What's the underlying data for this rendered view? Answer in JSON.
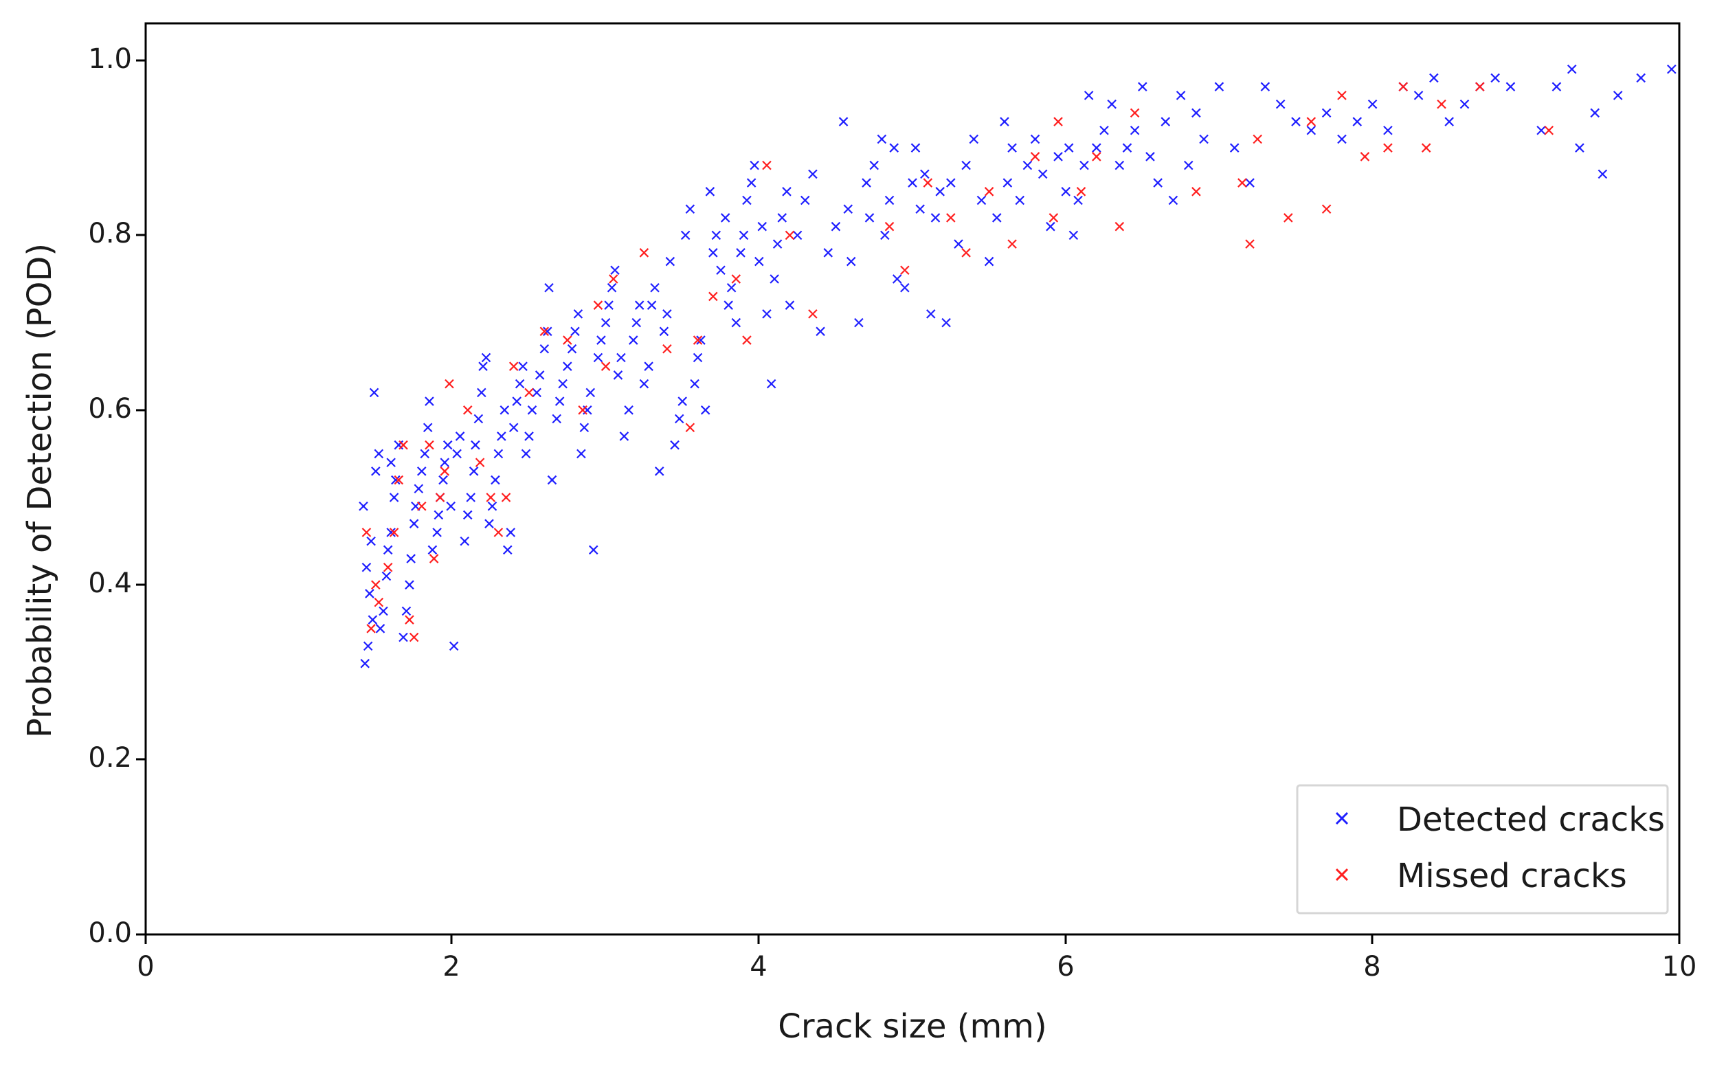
{
  "chart_data": {
    "type": "scatter",
    "title": "",
    "xlabel": "Crack size (mm)",
    "ylabel": "Probability of Detection (POD)",
    "xlim": [
      0,
      10
    ],
    "ylim": [
      0,
      1.0
    ],
    "x_ticks": [
      0,
      2,
      4,
      6,
      8,
      10
    ],
    "y_ticks": [
      0.0,
      0.2,
      0.4,
      0.6,
      0.8,
      1.0
    ],
    "x_tick_labels": [
      "0",
      "2",
      "4",
      "6",
      "8",
      "10"
    ],
    "y_tick_labels": [
      "0.0",
      "0.2",
      "0.4",
      "0.6",
      "0.8",
      "1.0"
    ],
    "grid": false,
    "legend_position": "bottom-right",
    "marker": "x",
    "series": [
      {
        "name": "Detected cracks",
        "color": "#1f1fff",
        "points": [
          [
            1.43,
            0.31
          ],
          [
            1.45,
            0.33
          ],
          [
            1.48,
            0.36
          ],
          [
            1.46,
            0.39
          ],
          [
            1.44,
            0.42
          ],
          [
            1.47,
            0.45
          ],
          [
            1.42,
            0.49
          ],
          [
            1.5,
            0.53
          ],
          [
            1.52,
            0.55
          ],
          [
            1.49,
            0.62
          ],
          [
            1.53,
            0.35
          ],
          [
            1.55,
            0.37
          ],
          [
            1.57,
            0.41
          ],
          [
            1.58,
            0.44
          ],
          [
            1.6,
            0.46
          ],
          [
            1.62,
            0.5
          ],
          [
            1.63,
            0.52
          ],
          [
            1.6,
            0.54
          ],
          [
            1.65,
            0.56
          ],
          [
            1.68,
            0.34
          ],
          [
            1.7,
            0.37
          ],
          [
            1.72,
            0.4
          ],
          [
            1.73,
            0.43
          ],
          [
            1.75,
            0.47
          ],
          [
            1.76,
            0.49
          ],
          [
            1.78,
            0.51
          ],
          [
            1.8,
            0.53
          ],
          [
            1.82,
            0.55
          ],
          [
            1.84,
            0.58
          ],
          [
            1.85,
            0.61
          ],
          [
            1.87,
            0.44
          ],
          [
            1.9,
            0.46
          ],
          [
            1.91,
            0.48
          ],
          [
            1.92,
            0.5
          ],
          [
            1.94,
            0.52
          ],
          [
            1.95,
            0.54
          ],
          [
            1.97,
            0.56
          ],
          [
            1.99,
            0.49
          ],
          [
            2.01,
            0.33
          ],
          [
            2.03,
            0.55
          ],
          [
            2.05,
            0.57
          ],
          [
            2.08,
            0.45
          ],
          [
            2.1,
            0.48
          ],
          [
            2.12,
            0.5
          ],
          [
            2.14,
            0.53
          ],
          [
            2.15,
            0.56
          ],
          [
            2.17,
            0.59
          ],
          [
            2.19,
            0.62
          ],
          [
            2.2,
            0.65
          ],
          [
            2.22,
            0.66
          ],
          [
            2.24,
            0.47
          ],
          [
            2.26,
            0.49
          ],
          [
            2.28,
            0.52
          ],
          [
            2.3,
            0.55
          ],
          [
            2.32,
            0.57
          ],
          [
            2.34,
            0.6
          ],
          [
            2.36,
            0.44
          ],
          [
            2.38,
            0.46
          ],
          [
            2.4,
            0.58
          ],
          [
            2.42,
            0.61
          ],
          [
            2.44,
            0.63
          ],
          [
            2.46,
            0.65
          ],
          [
            2.48,
            0.55
          ],
          [
            2.5,
            0.57
          ],
          [
            2.52,
            0.6
          ],
          [
            2.55,
            0.62
          ],
          [
            2.57,
            0.64
          ],
          [
            2.6,
            0.67
          ],
          [
            2.62,
            0.69
          ],
          [
            2.63,
            0.74
          ],
          [
            2.65,
            0.52
          ],
          [
            2.68,
            0.59
          ],
          [
            2.7,
            0.61
          ],
          [
            2.72,
            0.63
          ],
          [
            2.75,
            0.65
          ],
          [
            2.78,
            0.67
          ],
          [
            2.8,
            0.69
          ],
          [
            2.82,
            0.71
          ],
          [
            2.84,
            0.55
          ],
          [
            2.86,
            0.58
          ],
          [
            2.88,
            0.6
          ],
          [
            2.9,
            0.62
          ],
          [
            2.92,
            0.44
          ],
          [
            2.95,
            0.66
          ],
          [
            2.97,
            0.68
          ],
          [
            3.0,
            0.7
          ],
          [
            3.02,
            0.72
          ],
          [
            3.04,
            0.74
          ],
          [
            3.06,
            0.76
          ],
          [
            3.08,
            0.64
          ],
          [
            3.1,
            0.66
          ],
          [
            3.12,
            0.57
          ],
          [
            3.15,
            0.6
          ],
          [
            3.18,
            0.68
          ],
          [
            3.2,
            0.7
          ],
          [
            3.22,
            0.72
          ],
          [
            3.25,
            0.63
          ],
          [
            3.28,
            0.65
          ],
          [
            3.3,
            0.72
          ],
          [
            3.32,
            0.74
          ],
          [
            3.35,
            0.53
          ],
          [
            3.38,
            0.69
          ],
          [
            3.4,
            0.71
          ],
          [
            3.42,
            0.77
          ],
          [
            3.45,
            0.56
          ],
          [
            3.48,
            0.59
          ],
          [
            3.5,
            0.61
          ],
          [
            3.52,
            0.8
          ],
          [
            3.55,
            0.83
          ],
          [
            3.58,
            0.63
          ],
          [
            3.6,
            0.66
          ],
          [
            3.62,
            0.68
          ],
          [
            3.65,
            0.6
          ],
          [
            3.68,
            0.85
          ],
          [
            3.7,
            0.78
          ],
          [
            3.72,
            0.8
          ],
          [
            3.75,
            0.76
          ],
          [
            3.78,
            0.82
          ],
          [
            3.8,
            0.72
          ],
          [
            3.82,
            0.74
          ],
          [
            3.85,
            0.7
          ],
          [
            3.88,
            0.78
          ],
          [
            3.9,
            0.8
          ],
          [
            3.92,
            0.84
          ],
          [
            3.95,
            0.86
          ],
          [
            3.97,
            0.88
          ],
          [
            4.0,
            0.77
          ],
          [
            4.02,
            0.81
          ],
          [
            4.05,
            0.71
          ],
          [
            4.08,
            0.63
          ],
          [
            4.1,
            0.75
          ],
          [
            4.12,
            0.79
          ],
          [
            4.15,
            0.82
          ],
          [
            4.18,
            0.85
          ],
          [
            4.2,
            0.72
          ],
          [
            4.25,
            0.8
          ],
          [
            4.3,
            0.84
          ],
          [
            4.35,
            0.87
          ],
          [
            4.4,
            0.69
          ],
          [
            4.45,
            0.78
          ],
          [
            4.5,
            0.81
          ],
          [
            4.55,
            0.93
          ],
          [
            4.58,
            0.83
          ],
          [
            4.6,
            0.77
          ],
          [
            4.65,
            0.7
          ],
          [
            4.7,
            0.86
          ],
          [
            4.72,
            0.82
          ],
          [
            4.75,
            0.88
          ],
          [
            4.8,
            0.91
          ],
          [
            4.82,
            0.8
          ],
          [
            4.85,
            0.84
          ],
          [
            4.88,
            0.9
          ],
          [
            4.9,
            0.75
          ],
          [
            4.95,
            0.74
          ],
          [
            5.0,
            0.86
          ],
          [
            5.02,
            0.9
          ],
          [
            5.05,
            0.83
          ],
          [
            5.08,
            0.87
          ],
          [
            5.12,
            0.71
          ],
          [
            5.15,
            0.82
          ],
          [
            5.18,
            0.85
          ],
          [
            5.22,
            0.7
          ],
          [
            5.25,
            0.86
          ],
          [
            5.3,
            0.79
          ],
          [
            5.35,
            0.88
          ],
          [
            5.4,
            0.91
          ],
          [
            5.45,
            0.84
          ],
          [
            5.5,
            0.77
          ],
          [
            5.55,
            0.82
          ],
          [
            5.6,
            0.93
          ],
          [
            5.62,
            0.86
          ],
          [
            5.65,
            0.9
          ],
          [
            5.7,
            0.84
          ],
          [
            5.75,
            0.88
          ],
          [
            5.8,
            0.91
          ],
          [
            5.85,
            0.87
          ],
          [
            5.9,
            0.81
          ],
          [
            5.95,
            0.89
          ],
          [
            6.0,
            0.85
          ],
          [
            6.02,
            0.9
          ],
          [
            6.05,
            0.8
          ],
          [
            6.08,
            0.84
          ],
          [
            6.12,
            0.88
          ],
          [
            6.15,
            0.96
          ],
          [
            6.2,
            0.9
          ],
          [
            6.25,
            0.92
          ],
          [
            6.3,
            0.95
          ],
          [
            6.35,
            0.88
          ],
          [
            6.4,
            0.9
          ],
          [
            6.45,
            0.92
          ],
          [
            6.5,
            0.97
          ],
          [
            6.55,
            0.89
          ],
          [
            6.6,
            0.86
          ],
          [
            6.65,
            0.93
          ],
          [
            6.7,
            0.84
          ],
          [
            6.75,
            0.96
          ],
          [
            6.8,
            0.88
          ],
          [
            6.85,
            0.94
          ],
          [
            6.9,
            0.91
          ],
          [
            7.0,
            0.97
          ],
          [
            7.1,
            0.9
          ],
          [
            7.2,
            0.86
          ],
          [
            7.3,
            0.97
          ],
          [
            7.4,
            0.95
          ],
          [
            7.5,
            0.93
          ],
          [
            7.6,
            0.92
          ],
          [
            7.7,
            0.94
          ],
          [
            7.8,
            0.91
          ],
          [
            7.9,
            0.93
          ],
          [
            8.0,
            0.95
          ],
          [
            8.1,
            0.92
          ],
          [
            8.2,
            0.97
          ],
          [
            8.3,
            0.96
          ],
          [
            8.4,
            0.98
          ],
          [
            8.5,
            0.93
          ],
          [
            8.6,
            0.95
          ],
          [
            8.7,
            0.97
          ],
          [
            8.8,
            0.98
          ],
          [
            8.9,
            0.97
          ],
          [
            9.1,
            0.92
          ],
          [
            9.2,
            0.97
          ],
          [
            9.3,
            0.99
          ],
          [
            9.35,
            0.9
          ],
          [
            9.45,
            0.94
          ],
          [
            9.5,
            0.87
          ],
          [
            9.6,
            0.96
          ],
          [
            9.75,
            0.98
          ],
          [
            9.95,
            0.99
          ]
        ]
      },
      {
        "name": "Missed cracks",
        "color": "#ff1f1f",
        "points": [
          [
            1.44,
            0.46
          ],
          [
            1.47,
            0.35
          ],
          [
            1.5,
            0.4
          ],
          [
            1.52,
            0.38
          ],
          [
            1.58,
            0.42
          ],
          [
            1.62,
            0.46
          ],
          [
            1.65,
            0.52
          ],
          [
            1.68,
            0.56
          ],
          [
            1.72,
            0.36
          ],
          [
            1.75,
            0.34
          ],
          [
            1.8,
            0.49
          ],
          [
            1.85,
            0.56
          ],
          [
            1.88,
            0.43
          ],
          [
            1.92,
            0.5
          ],
          [
            1.95,
            0.53
          ],
          [
            1.98,
            0.63
          ],
          [
            2.1,
            0.6
          ],
          [
            2.18,
            0.54
          ],
          [
            2.25,
            0.5
          ],
          [
            2.3,
            0.46
          ],
          [
            2.35,
            0.5
          ],
          [
            2.4,
            0.65
          ],
          [
            2.5,
            0.62
          ],
          [
            2.6,
            0.69
          ],
          [
            2.75,
            0.68
          ],
          [
            2.85,
            0.6
          ],
          [
            2.95,
            0.72
          ],
          [
            3.0,
            0.65
          ],
          [
            3.05,
            0.75
          ],
          [
            3.25,
            0.78
          ],
          [
            3.4,
            0.67
          ],
          [
            3.55,
            0.58
          ],
          [
            3.7,
            0.73
          ],
          [
            3.85,
            0.75
          ],
          [
            3.92,
            0.68
          ],
          [
            4.05,
            0.88
          ],
          [
            4.35,
            0.71
          ],
          [
            4.85,
            0.81
          ],
          [
            4.95,
            0.76
          ],
          [
            5.1,
            0.86
          ],
          [
            5.25,
            0.82
          ],
          [
            5.35,
            0.78
          ],
          [
            5.5,
            0.85
          ],
          [
            5.65,
            0.79
          ],
          [
            5.8,
            0.89
          ],
          [
            5.95,
            0.93
          ],
          [
            6.1,
            0.85
          ],
          [
            6.2,
            0.89
          ],
          [
            6.35,
            0.81
          ],
          [
            6.45,
            0.94
          ],
          [
            6.85,
            0.85
          ],
          [
            7.15,
            0.86
          ],
          [
            7.25,
            0.91
          ],
          [
            7.45,
            0.82
          ],
          [
            7.6,
            0.93
          ],
          [
            7.7,
            0.83
          ],
          [
            7.8,
            0.96
          ],
          [
            7.95,
            0.89
          ],
          [
            8.1,
            0.9
          ],
          [
            8.2,
            0.97
          ],
          [
            8.35,
            0.9
          ],
          [
            8.45,
            0.95
          ],
          [
            8.7,
            0.97
          ],
          [
            9.15,
            0.92
          ],
          [
            7.2,
            0.79
          ],
          [
            5.92,
            0.82
          ],
          [
            4.2,
            0.8
          ],
          [
            3.6,
            0.68
          ]
        ]
      }
    ]
  }
}
